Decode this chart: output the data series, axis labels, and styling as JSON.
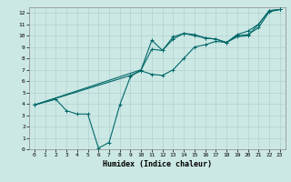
{
  "title": "",
  "xlabel": "Humidex (Indice chaleur)",
  "bg_color": "#cce8e4",
  "line_color": "#006868",
  "xlim": [
    -0.5,
    23.5
  ],
  "ylim": [
    0,
    12.5
  ],
  "xticks": [
    0,
    1,
    2,
    3,
    4,
    5,
    6,
    7,
    8,
    9,
    10,
    11,
    12,
    13,
    14,
    15,
    16,
    17,
    18,
    19,
    20,
    21,
    22,
    23
  ],
  "yticks": [
    0,
    1,
    2,
    3,
    4,
    5,
    6,
    7,
    8,
    9,
    10,
    11,
    12
  ],
  "line1_x": [
    0,
    2,
    3,
    4,
    5,
    6,
    7,
    8,
    9,
    10,
    11,
    12,
    13,
    14,
    15,
    16,
    17,
    18,
    19,
    20,
    21,
    22,
    23
  ],
  "line1_y": [
    3.9,
    4.4,
    3.4,
    3.1,
    3.1,
    0.1,
    0.6,
    3.9,
    6.4,
    7.0,
    9.6,
    8.7,
    9.9,
    10.2,
    10.1,
    9.8,
    9.7,
    9.4,
    10.0,
    10.1,
    10.7,
    12.1,
    12.3
  ],
  "line2_x": [
    0,
    10,
    11,
    12,
    13,
    14,
    15,
    16,
    17,
    18,
    19,
    20,
    21,
    22,
    23
  ],
  "line2_y": [
    3.9,
    7.0,
    8.8,
    8.7,
    9.7,
    10.2,
    10.0,
    9.8,
    9.7,
    9.4,
    10.1,
    10.4,
    11.0,
    12.2,
    12.3
  ],
  "line3_x": [
    0,
    9,
    10,
    11,
    12,
    13,
    14,
    15,
    16,
    17,
    18,
    19,
    20,
    21,
    22,
    23
  ],
  "line3_y": [
    3.9,
    6.5,
    6.9,
    6.6,
    6.5,
    7.0,
    8.0,
    9.0,
    9.2,
    9.5,
    9.4,
    9.9,
    10.0,
    11.0,
    12.2,
    12.3
  ],
  "grid_color": "#aacccc",
  "tick_fontsize": 4.5,
  "xlabel_fontsize": 6.0,
  "linewidth": 0.8,
  "markersize": 2.5
}
